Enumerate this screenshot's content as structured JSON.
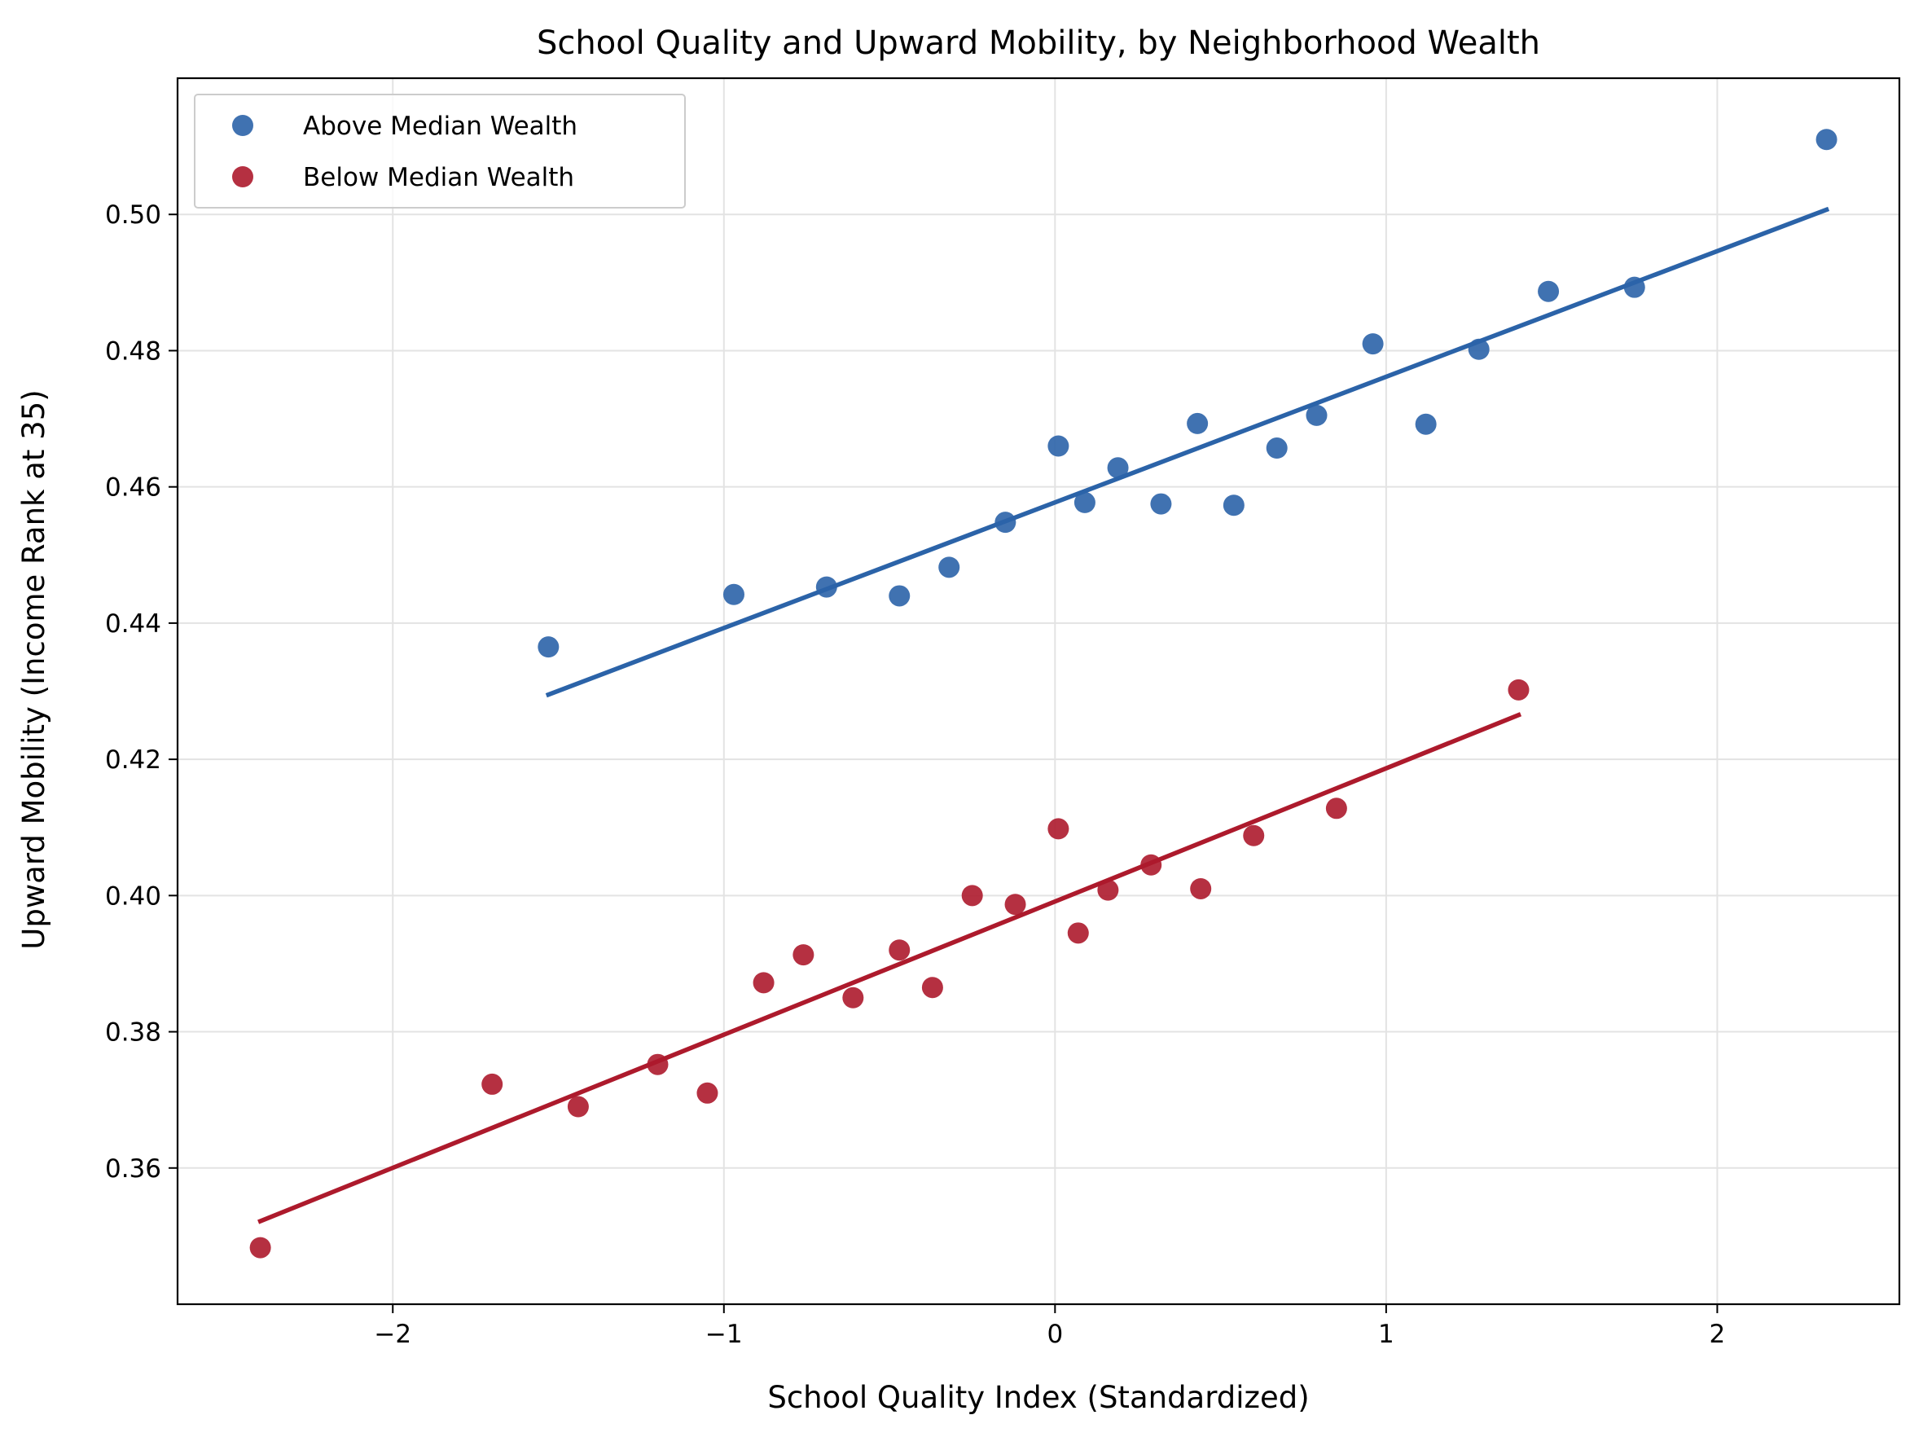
{
  "chart_data": {
    "type": "scatter",
    "title": "School Quality and Upward Mobility, by Neighborhood Wealth",
    "xlabel": "School Quality Index (Standardized)",
    "ylabel": "Upward Mobility (Income Rank at 35)",
    "xlim": [
      -2.65,
      2.55
    ],
    "ylim": [
      0.34,
      0.52
    ],
    "xticks": [
      -2,
      -1,
      0,
      1,
      2
    ],
    "xtick_labels": [
      "−2",
      "−1",
      "0",
      "1",
      "2"
    ],
    "yticks": [
      0.36,
      0.38,
      0.4,
      0.42,
      0.44,
      0.46,
      0.48,
      0.5
    ],
    "ytick_labels": [
      "0.36",
      "0.38",
      "0.40",
      "0.42",
      "0.44",
      "0.46",
      "0.48",
      "0.50"
    ],
    "grid": true,
    "legend_position": "top-left",
    "series": [
      {
        "name": "Above Median Wealth",
        "color": "#2b63a8",
        "points": [
          [
            -1.53,
            0.4365
          ],
          [
            -0.97,
            0.4442
          ],
          [
            -0.69,
            0.4453
          ],
          [
            -0.47,
            0.444
          ],
          [
            -0.32,
            0.4482
          ],
          [
            -0.15,
            0.4548
          ],
          [
            0.01,
            0.466
          ],
          [
            0.09,
            0.4577
          ],
          [
            0.19,
            0.4628
          ],
          [
            0.32,
            0.4575
          ],
          [
            0.43,
            0.4693
          ],
          [
            0.54,
            0.4573
          ],
          [
            0.67,
            0.4657
          ],
          [
            0.79,
            0.4705
          ],
          [
            0.96,
            0.481
          ],
          [
            1.12,
            0.4692
          ],
          [
            1.28,
            0.4802
          ],
          [
            1.49,
            0.4887
          ],
          [
            1.75,
            0.4893
          ],
          [
            2.33,
            0.511
          ]
        ],
        "trend": [
          [
            -1.53,
            0.4295
          ],
          [
            2.33,
            0.5007
          ]
        ]
      },
      {
        "name": "Below Median Wealth",
        "color": "#ad1a2c",
        "points": [
          [
            -2.4,
            0.3483
          ],
          [
            -1.7,
            0.3723
          ],
          [
            -1.44,
            0.369
          ],
          [
            -1.2,
            0.3752
          ],
          [
            -1.05,
            0.371
          ],
          [
            -0.88,
            0.3872
          ],
          [
            -0.76,
            0.3913
          ],
          [
            -0.61,
            0.385
          ],
          [
            -0.47,
            0.392
          ],
          [
            -0.37,
            0.3865
          ],
          [
            -0.25,
            0.4
          ],
          [
            -0.12,
            0.3987
          ],
          [
            0.01,
            0.4098
          ],
          [
            0.07,
            0.3945
          ],
          [
            0.16,
            0.4008
          ],
          [
            0.29,
            0.4045
          ],
          [
            0.44,
            0.401
          ],
          [
            0.6,
            0.4088
          ],
          [
            0.85,
            0.4128
          ],
          [
            1.4,
            0.4302
          ]
        ],
        "trend": [
          [
            -2.4,
            0.3522
          ],
          [
            1.4,
            0.4265
          ]
        ]
      }
    ]
  }
}
